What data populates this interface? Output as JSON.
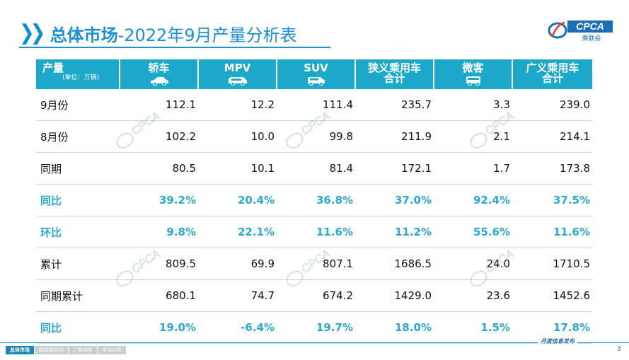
{
  "header": {
    "title_main": "总体市场",
    "title_rest": "-2022年9月产量分析表",
    "logo_text": "CPCA",
    "logo_sub": "乘联会"
  },
  "table": {
    "columns": [
      {
        "label": "产量",
        "unit": "(单位：万辆)",
        "icon": ""
      },
      {
        "label": "轿车",
        "icon": "sedan-icon"
      },
      {
        "label": "MPV",
        "icon": "mpv-icon"
      },
      {
        "label": "SUV",
        "icon": "suv-icon"
      },
      {
        "label": "狭义乘用车",
        "label2": "合计",
        "icon": ""
      },
      {
        "label": "微客",
        "icon": "microbus-icon"
      },
      {
        "label": "广义乘用车",
        "label2": "合计",
        "icon": ""
      }
    ],
    "rows": [
      {
        "label": "9月份",
        "highlight": false,
        "values": [
          "112.1",
          "12.2",
          "111.4",
          "235.7",
          "3.3",
          "239.0"
        ]
      },
      {
        "label": "8月份",
        "highlight": false,
        "values": [
          "102.2",
          "10.0",
          "99.8",
          "211.9",
          "2.1",
          "214.1"
        ]
      },
      {
        "label": "同期",
        "highlight": false,
        "values": [
          "80.5",
          "10.1",
          "81.4",
          "172.1",
          "1.7",
          "173.8"
        ]
      },
      {
        "label": "同比",
        "highlight": true,
        "values": [
          "39.2%",
          "20.4%",
          "36.8%",
          "37.0%",
          "92.4%",
          "37.5%"
        ]
      },
      {
        "label": "环比",
        "highlight": true,
        "values": [
          "9.8%",
          "22.1%",
          "11.6%",
          "11.2%",
          "55.6%",
          "11.6%"
        ]
      },
      {
        "label": "累计",
        "highlight": false,
        "values": [
          "809.5",
          "69.9",
          "807.1",
          "1686.5",
          "24.0",
          "1710.5"
        ]
      },
      {
        "label": "同期累计",
        "highlight": false,
        "values": [
          "680.1",
          "74.7",
          "674.2",
          "1429.0",
          "23.6",
          "1452.6"
        ]
      },
      {
        "label": "同比",
        "highlight": true,
        "values": [
          "19.0%",
          "-6.4%",
          "19.7%",
          "18.0%",
          "1.5%",
          "17.8%"
        ]
      }
    ]
  },
  "watermark": {
    "text": "CPCA",
    "sub": "乘联会"
  },
  "footer": {
    "tabs": [
      {
        "label": "总体市场",
        "active": true
      },
      {
        "label": "新能源市场",
        "active": false
      },
      {
        "label": "厂商排名",
        "active": false
      },
      {
        "label": "市场分析",
        "active": false
      }
    ],
    "note": "月度信息发布",
    "page_number": "3"
  },
  "colors": {
    "accent": "#1d8fcf",
    "header_bg": "#1ca9c9",
    "highlight_text": "#2aa8cf"
  }
}
